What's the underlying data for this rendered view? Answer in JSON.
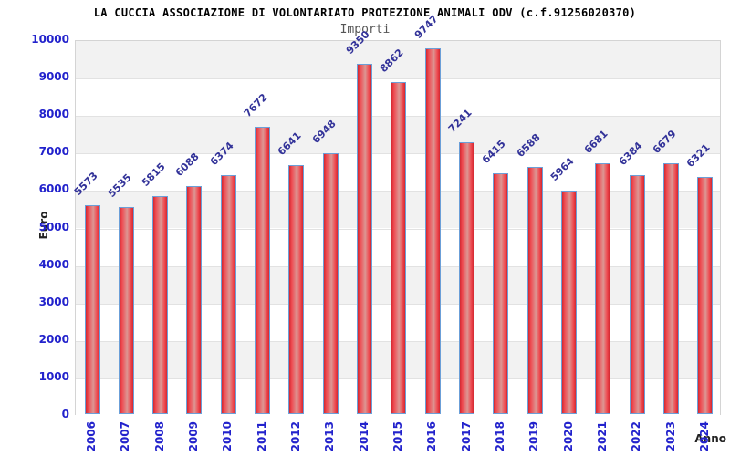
{
  "chart_data": {
    "type": "bar",
    "title": "LA CUCCIA ASSOCIAZIONE DI VOLONTARIATO PROTEZIONE ANIMALI ODV (c.f.91256020370)",
    "subtitle": "Importi",
    "xlabel": "Anno",
    "ylabel": "Euro",
    "categories": [
      "2006",
      "2007",
      "2008",
      "2009",
      "2010",
      "2011",
      "2012",
      "2013",
      "2014",
      "2015",
      "2016",
      "2017",
      "2018",
      "2019",
      "2020",
      "2021",
      "2022",
      "2023",
      "2024"
    ],
    "values": [
      5573,
      5535,
      5815,
      6088,
      6374,
      7672,
      6641,
      6948,
      9350,
      8862,
      9747,
      7241,
      6415,
      6588,
      5964,
      6681,
      6384,
      6679,
      6321
    ],
    "ylim": [
      0,
      10000
    ],
    "ytick_step": 1000,
    "grid": true,
    "legend": "none",
    "colors": {
      "bar_edge": "#d22730",
      "bar_bright": "#ef4a50",
      "bar_center": "#dc9693",
      "bar_border": "#6b9fd8",
      "value_label": "#333399",
      "tick_label": "#2222cc",
      "band_gray": "#f2f2f2",
      "band_white": "#ffffff",
      "gridline": "#e2e2e2",
      "title_color": "#000000",
      "subtitle_color": "#555555",
      "axis_label_color": "#222222"
    }
  }
}
